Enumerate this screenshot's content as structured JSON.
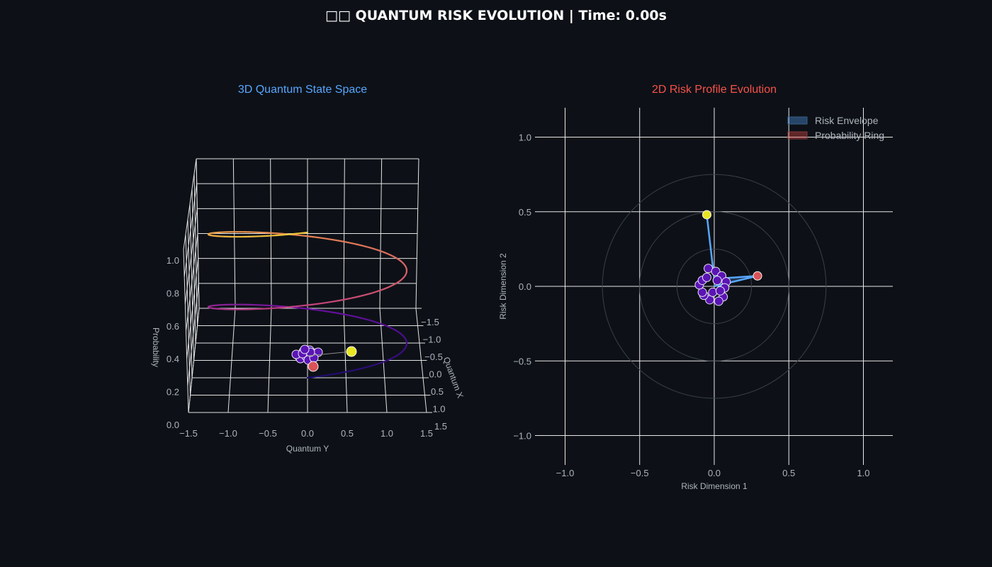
{
  "title": "□□ QUANTUM RISK EVOLUTION | Time: 0.00s",
  "colors": {
    "background": "#0d1117",
    "grid": "#e8e8e8",
    "title_3d": "#58a6ff",
    "title_2d": "#f85149",
    "envelope_line": "#58a6ff",
    "marker_yellow": "#e8e620",
    "marker_red": "#d95358",
    "particle": "#5a14b4"
  },
  "chart_data": [
    {
      "type": "scatter3d",
      "title": "3D Quantum State Space",
      "xlabel": "Quantum X",
      "ylabel": "Quantum Y",
      "zlabel": "Probability",
      "x_ticks": [
        "−1.5",
        "−1.0",
        "−0.5",
        "0.0",
        "0.5",
        "1.0",
        "1.5"
      ],
      "y_ticks": [
        "−1.5",
        "−1.0",
        "−0.5",
        "0.0",
        "0.5",
        "1.0",
        "1.5"
      ],
      "z_ticks": [
        "0.0",
        "0.2",
        "0.4",
        "0.6",
        "0.8",
        "1.0"
      ],
      "xlim": [
        -1.5,
        1.5
      ],
      "ylim": [
        -1.5,
        1.5
      ],
      "zlim": [
        0,
        1.2
      ],
      "helix": {
        "turns": 2,
        "radius": 1.3,
        "z_range": [
          0.1,
          1.1
        ],
        "colorscale": [
          "#1b0c6b",
          "#6a0fa0",
          "#c2417b",
          "#e48053",
          "#f0c93a"
        ]
      },
      "cluster": {
        "center": [
          0.0,
          0.0,
          0.4
        ],
        "count": 14
      },
      "points": [
        {
          "name": "yellow",
          "x": -0.6,
          "y": 0.55,
          "z": 0.45
        },
        {
          "name": "red",
          "x": 0.0,
          "y": 0.08,
          "z": 0.3
        }
      ]
    },
    {
      "type": "scatter",
      "title": "2D Risk Profile Evolution",
      "xlabel": "Risk Dimension 1",
      "ylabel": "Risk Dimension 2",
      "x_ticks": [
        "−1.0",
        "−0.5",
        "0.0",
        "0.5",
        "1.0"
      ],
      "y_ticks": [
        "−1.0",
        "−0.5",
        "0.0",
        "0.5",
        "1.0"
      ],
      "xlim": [
        -1.2,
        1.2
      ],
      "ylim": [
        -1.2,
        1.2
      ],
      "rings": [
        0.25,
        0.5,
        0.75
      ],
      "legend": [
        "Risk Envelope",
        "Probability Ring"
      ],
      "legend_position": "top-right",
      "envelope": [
        [
          -0.05,
          0.48
        ],
        [
          0.0,
          0.05
        ],
        [
          0.29,
          0.07
        ],
        [
          0.0,
          0.0
        ]
      ],
      "points": [
        {
          "name": "yellow",
          "x": -0.05,
          "y": 0.48
        },
        {
          "name": "red",
          "x": 0.29,
          "y": 0.07
        }
      ],
      "cluster": [
        [
          -0.04,
          0.12
        ],
        [
          0.01,
          0.1
        ],
        [
          0.05,
          0.07
        ],
        [
          0.08,
          0.03
        ],
        [
          0.07,
          -0.01
        ],
        [
          0.06,
          -0.07
        ],
        [
          0.03,
          -0.1
        ],
        [
          -0.03,
          -0.09
        ],
        [
          -0.07,
          -0.06
        ],
        [
          -0.08,
          -0.04
        ],
        [
          -0.1,
          0.01
        ],
        [
          -0.08,
          0.04
        ],
        [
          -0.05,
          0.06
        ],
        [
          0.02,
          0.04
        ],
        [
          -0.01,
          -0.04
        ],
        [
          0.04,
          -0.03
        ]
      ]
    }
  ]
}
